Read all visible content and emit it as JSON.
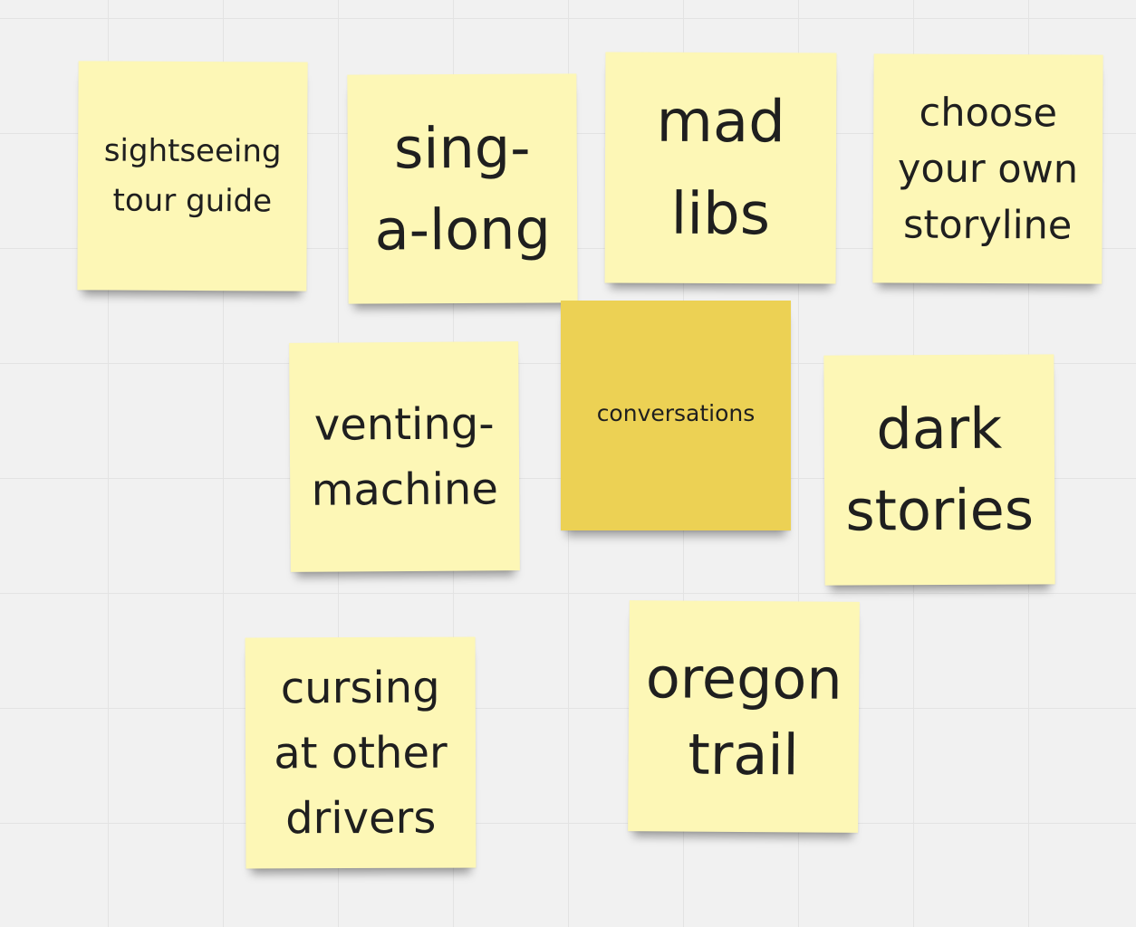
{
  "board": {
    "background_color": "#f1f1f1",
    "grid_color": "#e3e3e3"
  },
  "notes": [
    {
      "id": "sightseeing",
      "text": "sightseeing\ntour guide",
      "color": "#fdf7b6"
    },
    {
      "id": "sing-along",
      "text": "sing-\na-long",
      "color": "#fdf7b6"
    },
    {
      "id": "mad-libs",
      "text": "mad\nlibs",
      "color": "#fdf7b6"
    },
    {
      "id": "choose-storyline",
      "text": "choose\nyour own\nstoryline",
      "color": "#fdf7b6"
    },
    {
      "id": "venting-machine",
      "text": "venting-\nmachine",
      "color": "#fdf7b6"
    },
    {
      "id": "conversations",
      "text": "conversations",
      "color": "#ecd154"
    },
    {
      "id": "dark-stories",
      "text": "dark\nstories",
      "color": "#fdf7b6"
    },
    {
      "id": "cursing",
      "text": "cursing\nat other\ndrivers",
      "color": "#fdf7b6"
    },
    {
      "id": "oregon-trail",
      "text": "oregon\ntrail",
      "color": "#fdf7b6"
    }
  ]
}
